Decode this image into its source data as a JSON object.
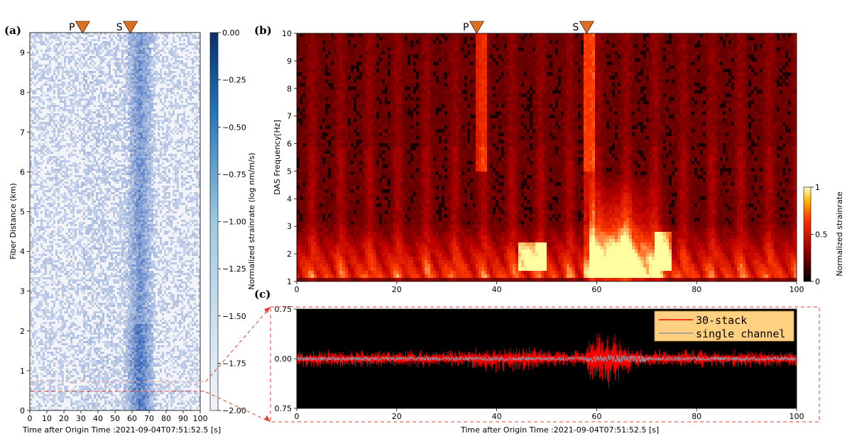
{
  "panels": {
    "a": "(a)",
    "b": "(b)",
    "c": "(c)"
  },
  "phase_labels": {
    "p": "P",
    "s": "S"
  },
  "phase_marker_color": "#e07020",
  "chart_data": [
    {
      "id": "a",
      "type": "heatmap",
      "xlabel": "Time after Origin Time :2021-09-04T07:51:52.5 [s]",
      "ylabel": "Fiber Distance (km)",
      "xlim": [
        0,
        100
      ],
      "ylim": [
        0,
        9.5
      ],
      "xticks": [
        0,
        10,
        20,
        30,
        40,
        50,
        60,
        70,
        80,
        90,
        100
      ],
      "yticks": [
        0,
        1,
        2,
        3,
        4,
        5,
        6,
        7,
        8,
        9
      ],
      "phase_picks": {
        "P": 31,
        "S": 59
      },
      "colorbar": {
        "label": "Normalized strainrate (log nm/m/s)",
        "range": [
          -2.0,
          0.0
        ],
        "ticks": [
          "0.00",
          "−0.25",
          "−0.50",
          "−0.75",
          "−1.00",
          "−1.25",
          "−1.50",
          "−1.75",
          "−2.00"
        ],
        "colors": [
          "#f5f5fb",
          "#08306b"
        ]
      },
      "highlight_band_km": [
        0.45,
        0.75
      ],
      "highlight_color": "#e04030"
    },
    {
      "id": "b",
      "type": "heatmap",
      "xlabel": "",
      "ylabel": "DAS Frequency[Hz]",
      "xlim": [
        0,
        100
      ],
      "ylim": [
        1,
        10
      ],
      "xticks": [
        0,
        20,
        40,
        60,
        80,
        100
      ],
      "yticks": [
        1,
        2,
        3,
        4,
        5,
        6,
        7,
        8,
        9,
        10
      ],
      "phase_picks": {
        "P": 36,
        "S": 58
      },
      "colorbar": {
        "label": "Normalized strainrate",
        "range": [
          0,
          1
        ],
        "ticks": [
          "0",
          "0.5",
          "1"
        ],
        "colors": [
          "#000000",
          "#ff2000",
          "#ffff80"
        ]
      }
    },
    {
      "id": "c",
      "type": "line",
      "xlabel": "Time after Origin Time :2021-09-04T07:51:52.5 [s]",
      "ylabel": "",
      "xlim": [
        0,
        100
      ],
      "ylim": [
        -0.75,
        0.75
      ],
      "xticks": [
        0,
        20,
        40,
        60,
        80,
        100
      ],
      "yticks": [
        "0.75",
        "0.00",
        "0.75"
      ],
      "background": "#000000",
      "legend": {
        "placement": "top-right",
        "background": "#ffd080"
      },
      "series": [
        {
          "name": "30-stack",
          "color": "#ff0000",
          "noise_amplitude": 0.1,
          "event_window": [
            58,
            70
          ],
          "event_amplitude": 0.55
        },
        {
          "name": "single channel",
          "color": "#9090a0",
          "noise_amplitude": 0.03
        }
      ]
    }
  ]
}
